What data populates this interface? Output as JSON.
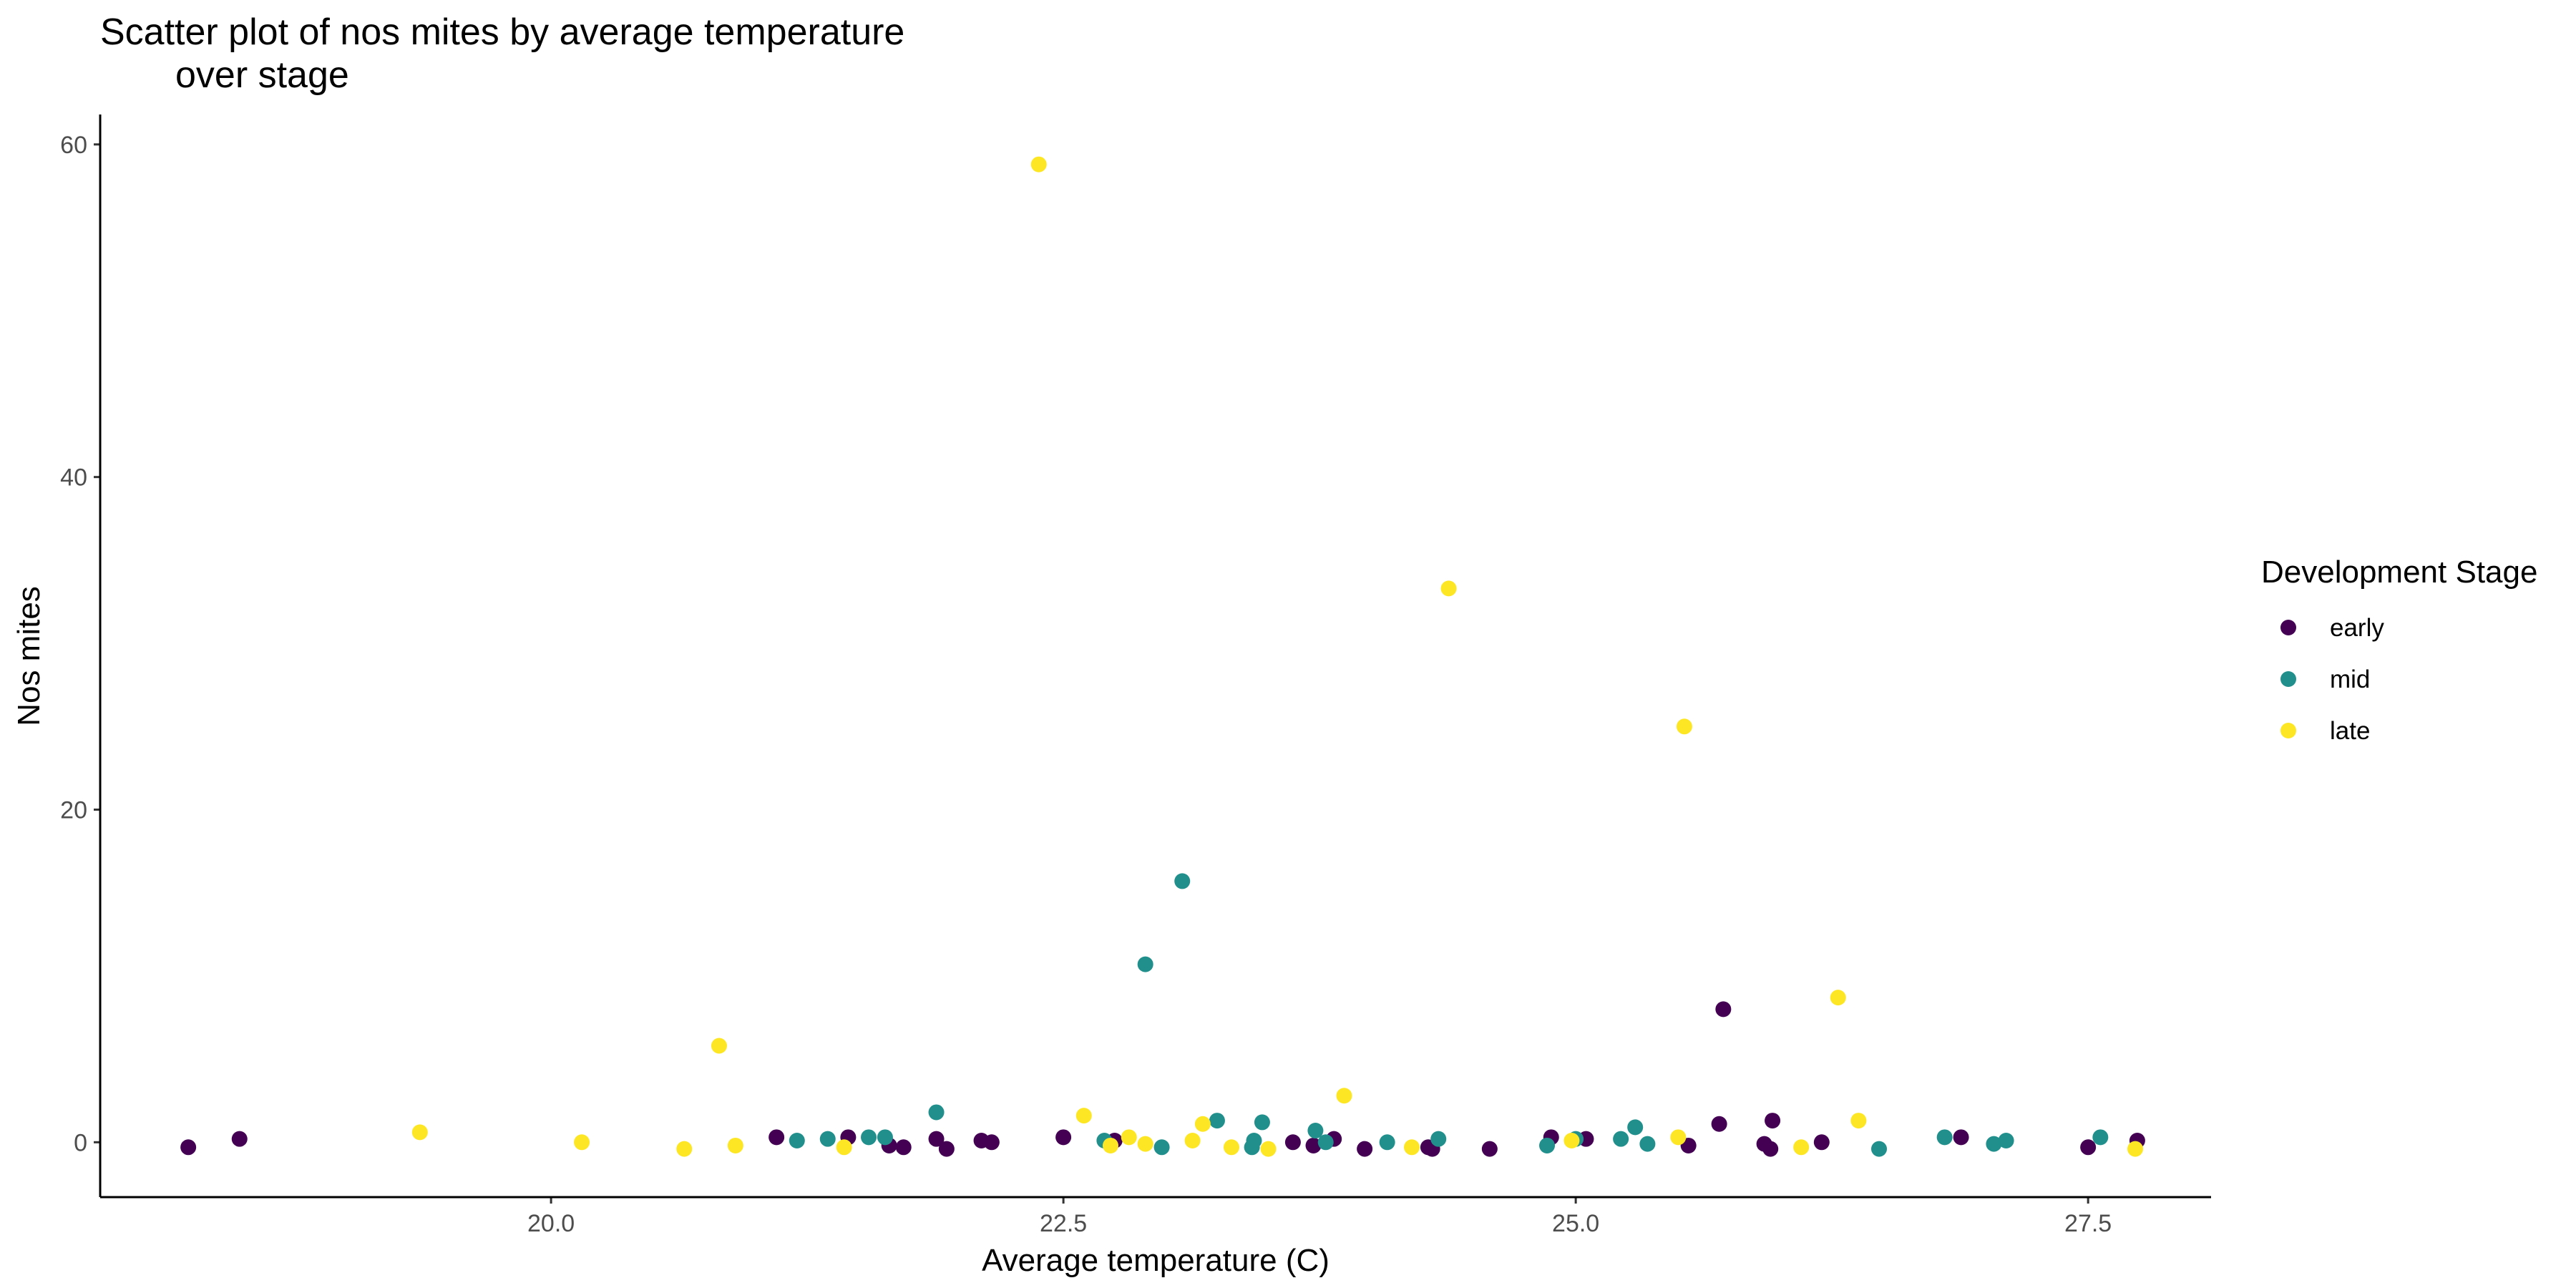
{
  "chart_data": {
    "type": "scatter",
    "title_line1": "Scatter plot of nos mites by average temperature",
    "title_line2": "over stage",
    "xlabel": "Average temperature (C)",
    "ylabel": "Nos mites",
    "xlim": [
      17.8,
      28.1
    ],
    "ylim": [
      -3.3,
      61.8
    ],
    "x_ticks": [
      20.0,
      22.5,
      25.0,
      27.5
    ],
    "x_tick_labels": [
      "20.0",
      "22.5",
      "25.0",
      "27.5"
    ],
    "y_ticks": [
      0,
      20,
      40,
      60
    ],
    "y_tick_labels": [
      "0",
      "20",
      "40",
      "60"
    ],
    "grid": false,
    "legend": {
      "title": "Development Stage",
      "position": "right",
      "entries": [
        "early",
        "mid",
        "late"
      ]
    },
    "colors": {
      "early": "#440154",
      "mid": "#21908C",
      "late": "#FDE725"
    },
    "series": [
      {
        "name": "early",
        "color": "#440154",
        "points": [
          [
            18.23,
            -0.3
          ],
          [
            18.48,
            0.2
          ],
          [
            21.1,
            0.3
          ],
          [
            21.45,
            0.3
          ],
          [
            21.65,
            -0.2
          ],
          [
            21.72,
            -0.3
          ],
          [
            21.88,
            0.2
          ],
          [
            21.93,
            -0.4
          ],
          [
            22.1,
            0.1
          ],
          [
            22.15,
            0.0
          ],
          [
            22.5,
            0.3
          ],
          [
            22.75,
            0.1
          ],
          [
            23.62,
            0.0
          ],
          [
            23.72,
            -0.2
          ],
          [
            23.82,
            0.2
          ],
          [
            23.97,
            -0.4
          ],
          [
            24.28,
            -0.3
          ],
          [
            24.3,
            -0.4
          ],
          [
            24.58,
            -0.4
          ],
          [
            24.88,
            0.3
          ],
          [
            25.05,
            0.2
          ],
          [
            25.55,
            -0.2
          ],
          [
            25.7,
            1.1
          ],
          [
            25.72,
            8.0
          ],
          [
            25.92,
            -0.1
          ],
          [
            25.95,
            -0.4
          ],
          [
            25.96,
            1.3
          ],
          [
            26.2,
            0.0
          ],
          [
            26.88,
            0.3
          ],
          [
            27.5,
            -0.3
          ],
          [
            27.74,
            0.1
          ]
        ]
      },
      {
        "name": "mid",
        "color": "#21908C",
        "points": [
          [
            21.2,
            0.1
          ],
          [
            21.35,
            0.2
          ],
          [
            21.55,
            0.3
          ],
          [
            21.63,
            0.3
          ],
          [
            21.88,
            1.8
          ],
          [
            22.7,
            0.1
          ],
          [
            22.9,
            10.7
          ],
          [
            22.98,
            -0.3
          ],
          [
            23.08,
            15.7
          ],
          [
            23.25,
            1.3
          ],
          [
            23.42,
            -0.3
          ],
          [
            23.43,
            0.1
          ],
          [
            23.47,
            1.2
          ],
          [
            23.73,
            0.7
          ],
          [
            23.78,
            0.0
          ],
          [
            24.08,
            0.0
          ],
          [
            24.33,
            0.2
          ],
          [
            24.86,
            -0.2
          ],
          [
            25.0,
            0.2
          ],
          [
            25.22,
            0.2
          ],
          [
            25.29,
            0.9
          ],
          [
            25.35,
            -0.1
          ],
          [
            26.48,
            -0.4
          ],
          [
            26.8,
            0.3
          ],
          [
            27.04,
            -0.1
          ],
          [
            27.1,
            0.1
          ],
          [
            27.56,
            0.3
          ]
        ]
      },
      {
        "name": "late",
        "color": "#FDE725",
        "points": [
          [
            19.36,
            0.6
          ],
          [
            20.15,
            0.0
          ],
          [
            20.65,
            -0.4
          ],
          [
            20.82,
            5.8
          ],
          [
            20.9,
            -0.2
          ],
          [
            22.38,
            58.8
          ],
          [
            22.6,
            1.6
          ],
          [
            22.73,
            -0.2
          ],
          [
            22.82,
            0.3
          ],
          [
            22.9,
            -0.1
          ],
          [
            23.13,
            0.1
          ],
          [
            23.18,
            1.1
          ],
          [
            23.32,
            -0.3
          ],
          [
            23.5,
            -0.4
          ],
          [
            23.87,
            2.8
          ],
          [
            24.2,
            -0.3
          ],
          [
            24.38,
            33.3
          ],
          [
            24.98,
            0.1
          ],
          [
            25.5,
            0.3
          ],
          [
            25.53,
            25.0
          ],
          [
            26.1,
            -0.3
          ],
          [
            26.28,
            8.7
          ],
          [
            26.38,
            1.3
          ],
          [
            27.73,
            -0.4
          ],
          [
            21.43,
            -0.3
          ]
        ]
      }
    ]
  }
}
